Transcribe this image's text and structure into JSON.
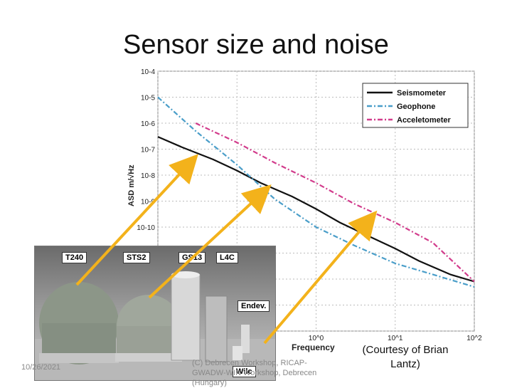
{
  "slide": {
    "title": "Sensor size and noise",
    "date": "10/26/2021",
    "footer_text": "(C) Debrecen Workshop, RICAP-GWADW-WIN Workshop, Debrecen (Hungary)",
    "courtesy": "(Courtesy of Brian Lantz)"
  },
  "photo": {
    "labels": [
      "T240",
      "STS2",
      "GS13",
      "L4C",
      "Endev.",
      "Wilc"
    ]
  },
  "chart_data": {
    "type": "line",
    "ylabel": "ASD m/√Hz",
    "xlabel": "Frequency",
    "xscale": "log",
    "yscale": "log",
    "xlim": [
      0.01,
      100
    ],
    "ylim": [
      1e-14,
      0.0001
    ],
    "grid": true,
    "legend": "top-right",
    "y_ticks": [
      "10-4",
      "10-5",
      "10-6",
      "10-7",
      "10-8",
      "10-9",
      "10-10"
    ],
    "x_ticks": [
      "10^0",
      "10^1",
      "10^2"
    ],
    "series": [
      {
        "name": "Seismometer",
        "color": "#111111",
        "style": "solid",
        "x": [
          0.01,
          0.02,
          0.05,
          0.1,
          0.2,
          0.5,
          1,
          2,
          5,
          10,
          20,
          50,
          100
        ],
        "y": [
          3e-07,
          1.2e-07,
          4e-08,
          1.5e-08,
          5e-09,
          1.5e-09,
          5e-10,
          1.5e-10,
          4e-11,
          1.5e-11,
          5e-12,
          1.5e-12,
          8e-13
        ]
      },
      {
        "name": "Geophone",
        "color": "#4a9ec9",
        "style": "dashdot",
        "x": [
          0.01,
          0.03,
          0.1,
          0.3,
          1,
          3,
          10,
          30,
          100
        ],
        "y": [
          1e-05,
          5e-07,
          2.5e-08,
          1.2e-09,
          1e-10,
          2e-11,
          4e-12,
          1.5e-12,
          5e-13
        ]
      },
      {
        "name": "Acceletometer",
        "color": "#d23c8c",
        "style": "dashdot",
        "x": [
          0.03,
          0.1,
          0.3,
          1,
          3,
          10,
          30,
          100
        ],
        "y": [
          1e-06,
          1.8e-07,
          3e-08,
          5e-09,
          8e-10,
          1.5e-10,
          2.5e-11,
          8e-13
        ]
      }
    ]
  }
}
